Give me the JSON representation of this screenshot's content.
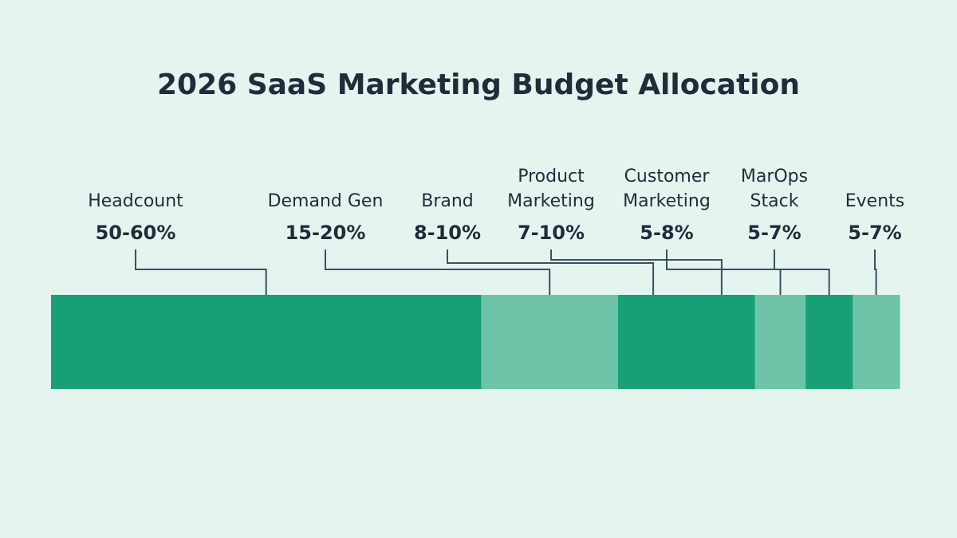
{
  "chart_data": {
    "type": "bar",
    "orientation": "horizontal-stacked",
    "title": "2026 SaaS Marketing Budget Allocation",
    "xlabel": "",
    "ylabel": "",
    "legend": "none",
    "grid": false,
    "unit": "%",
    "categories": [
      "Headcount",
      "Demand Gen",
      "Brand",
      "Product Marketing",
      "Customer Marketing",
      "MarOps Stack",
      "Events"
    ],
    "category_lines": [
      [
        "Headcount"
      ],
      [
        "Demand Gen"
      ],
      [
        "Brand"
      ],
      [
        "Product",
        "Marketing"
      ],
      [
        "Customer",
        "Marketing"
      ],
      [
        "MarOps",
        "Stack"
      ],
      [
        "Events"
      ]
    ],
    "value_labels": [
      "50-60%",
      "15-20%",
      "8-10%",
      "7-10%",
      "5-8%",
      "5-7%",
      "5-7%"
    ],
    "ranges": [
      [
        50,
        60
      ],
      [
        15,
        20
      ],
      [
        8,
        10
      ],
      [
        7,
        10
      ],
      [
        5,
        8
      ],
      [
        5,
        7
      ],
      [
        5,
        7
      ]
    ],
    "colors": {
      "dark": "#17a077",
      "light": "#6dc4a8",
      "background": "#e6f4f0",
      "text": "#1f2d3a",
      "leader": "#3d4f5e"
    }
  }
}
